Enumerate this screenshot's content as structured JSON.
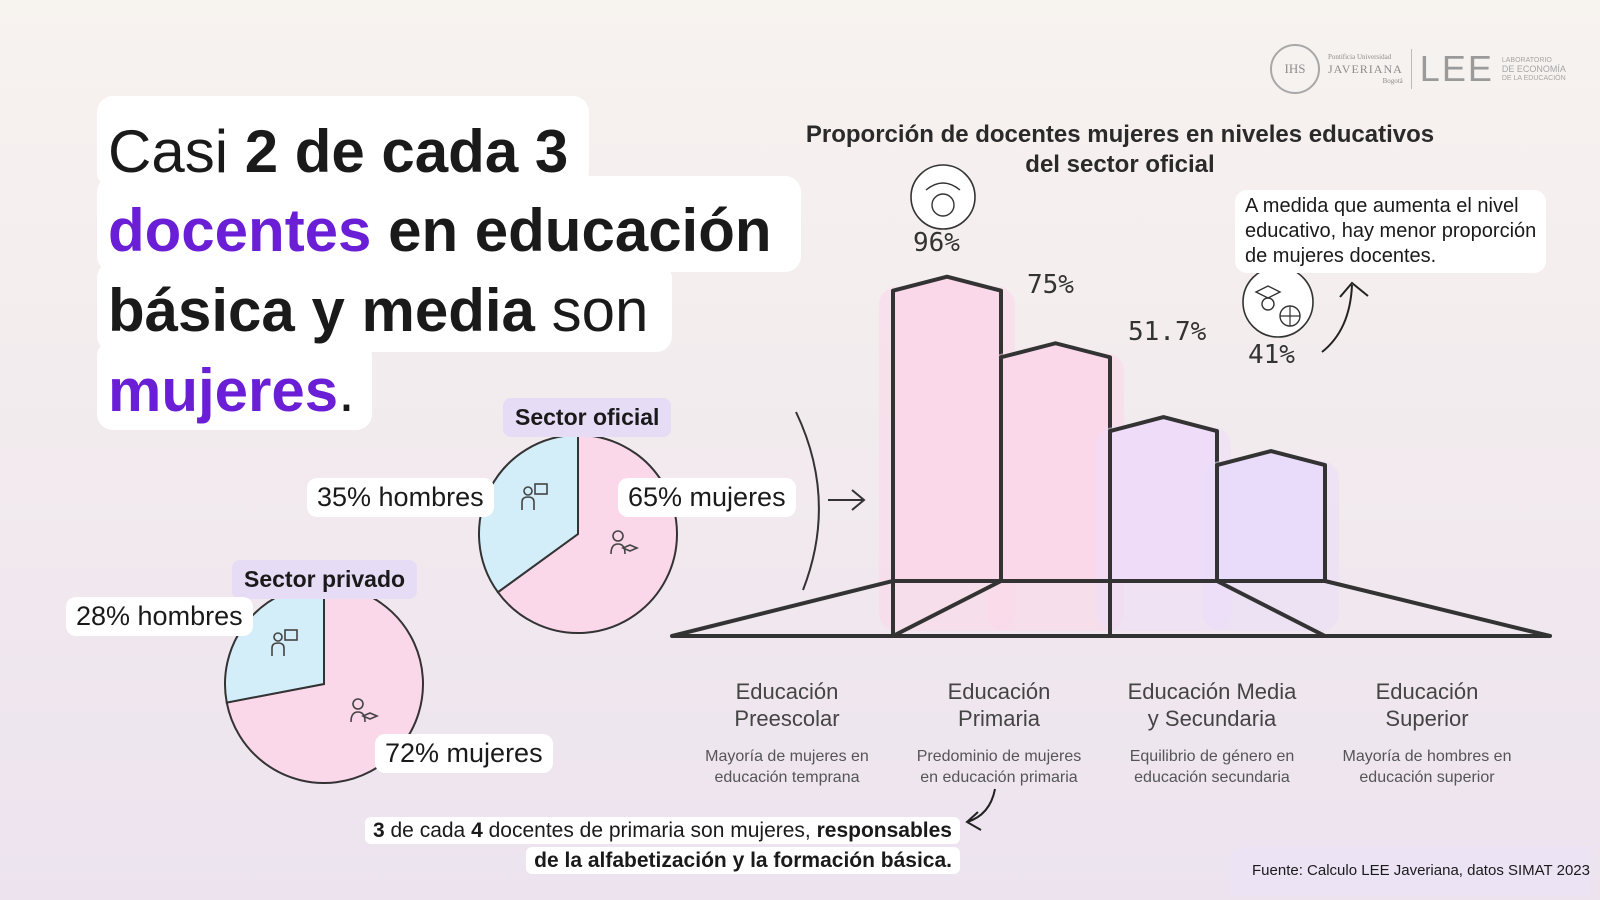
{
  "headline": {
    "l1_a": "Casi ",
    "l1_b": "2 de cada 3",
    "l2_a": "docentes",
    "l2_b": " en educación",
    "l3_a": "básica y media",
    "l3_b": " son",
    "l4_a": "mujeres",
    "l4_b": "."
  },
  "logo": {
    "seal": "IHS",
    "university_small": "Pontificia Universidad",
    "university_name": "JAVERIANA",
    "city": "Bogotá",
    "lee": "LEE",
    "lab_line1": "LABORATORIO",
    "lab_line2": "DE ECONOMÍA",
    "lab_line3": "DE LA EDUCACIÓN"
  },
  "chart_data": [
    {
      "type": "pie",
      "title": "Sector oficial",
      "slices": [
        {
          "label": "35% hombres",
          "value": 35,
          "color": "#d3eef9"
        },
        {
          "label": "65% mujeres",
          "value": 65,
          "color": "#fbd7ea"
        }
      ]
    },
    {
      "type": "pie",
      "title": "Sector privado",
      "slices": [
        {
          "label": "28% hombres",
          "value": 28,
          "color": "#d3eef9"
        },
        {
          "label": "72% mujeres",
          "value": 72,
          "color": "#fbd7ea"
        }
      ]
    },
    {
      "type": "bar",
      "title": "Proporción de docentes mujeres en niveles educativos del sector oficial",
      "categories": [
        "Educación Preescolar",
        "Educación Primaria",
        "Educación Media y Secundaria",
        "Educación Superior"
      ],
      "values": [
        96,
        75,
        51.7,
        41
      ],
      "value_labels": [
        "96%",
        "75%",
        "51.7%",
        "41%"
      ],
      "descriptions": [
        "Mayoría de mujeres en educación temprana",
        "Predominio de mujeres en educación primaria",
        "Equilibrio de género en educación secundaria",
        "Mayoría de hombres en educación superior"
      ],
      "colors": [
        "#fbd7ea",
        "#fbd7ea",
        "#eedcf8",
        "#e9dcfa"
      ],
      "ylim": [
        0,
        100
      ]
    }
  ],
  "chart_text": {
    "title_l1": "Proporción de docentes mujeres en niveles educativos",
    "title_l2": "del sector oficial",
    "cat1_l1": "Educación",
    "cat1_l2": "Preescolar",
    "cat2_l1": "Educación",
    "cat2_l2": "Primaria",
    "cat3_l1": "Educación Media",
    "cat3_l2": "y Secundaria",
    "cat4_l1": "Educación",
    "cat4_l2": "Superior",
    "desc1_l1": "Mayoría de mujeres en",
    "desc1_l2": "educación temprana",
    "desc2_l1": "Predominio de mujeres",
    "desc2_l2": "en educación primaria",
    "desc3_l1": "Equilibrio de género en",
    "desc3_l2": "educación secundaria",
    "desc4_l1": "Mayoría de hombres en",
    "desc4_l2": "educación superior"
  },
  "annotation": {
    "l1": "A medida que aumenta el nivel",
    "l2": "educativo, hay menor proporción",
    "l3": "de mujeres docentes."
  },
  "bottom_note": {
    "n1": "3",
    "t1": " de cada ",
    "n2": "4",
    "t2": " docentes de primaria son mujeres, ",
    "b1": "responsables",
    "b2": "de la alfabetización y la formación básica."
  },
  "source": "Fuente: Calculo LEE Javeriana, datos SIMAT 2023",
  "colors": {
    "purple": "#6a1fd6",
    "pink": "#fbd7ea",
    "blue": "#d3eef9",
    "lavender": "#e6dcf5"
  }
}
